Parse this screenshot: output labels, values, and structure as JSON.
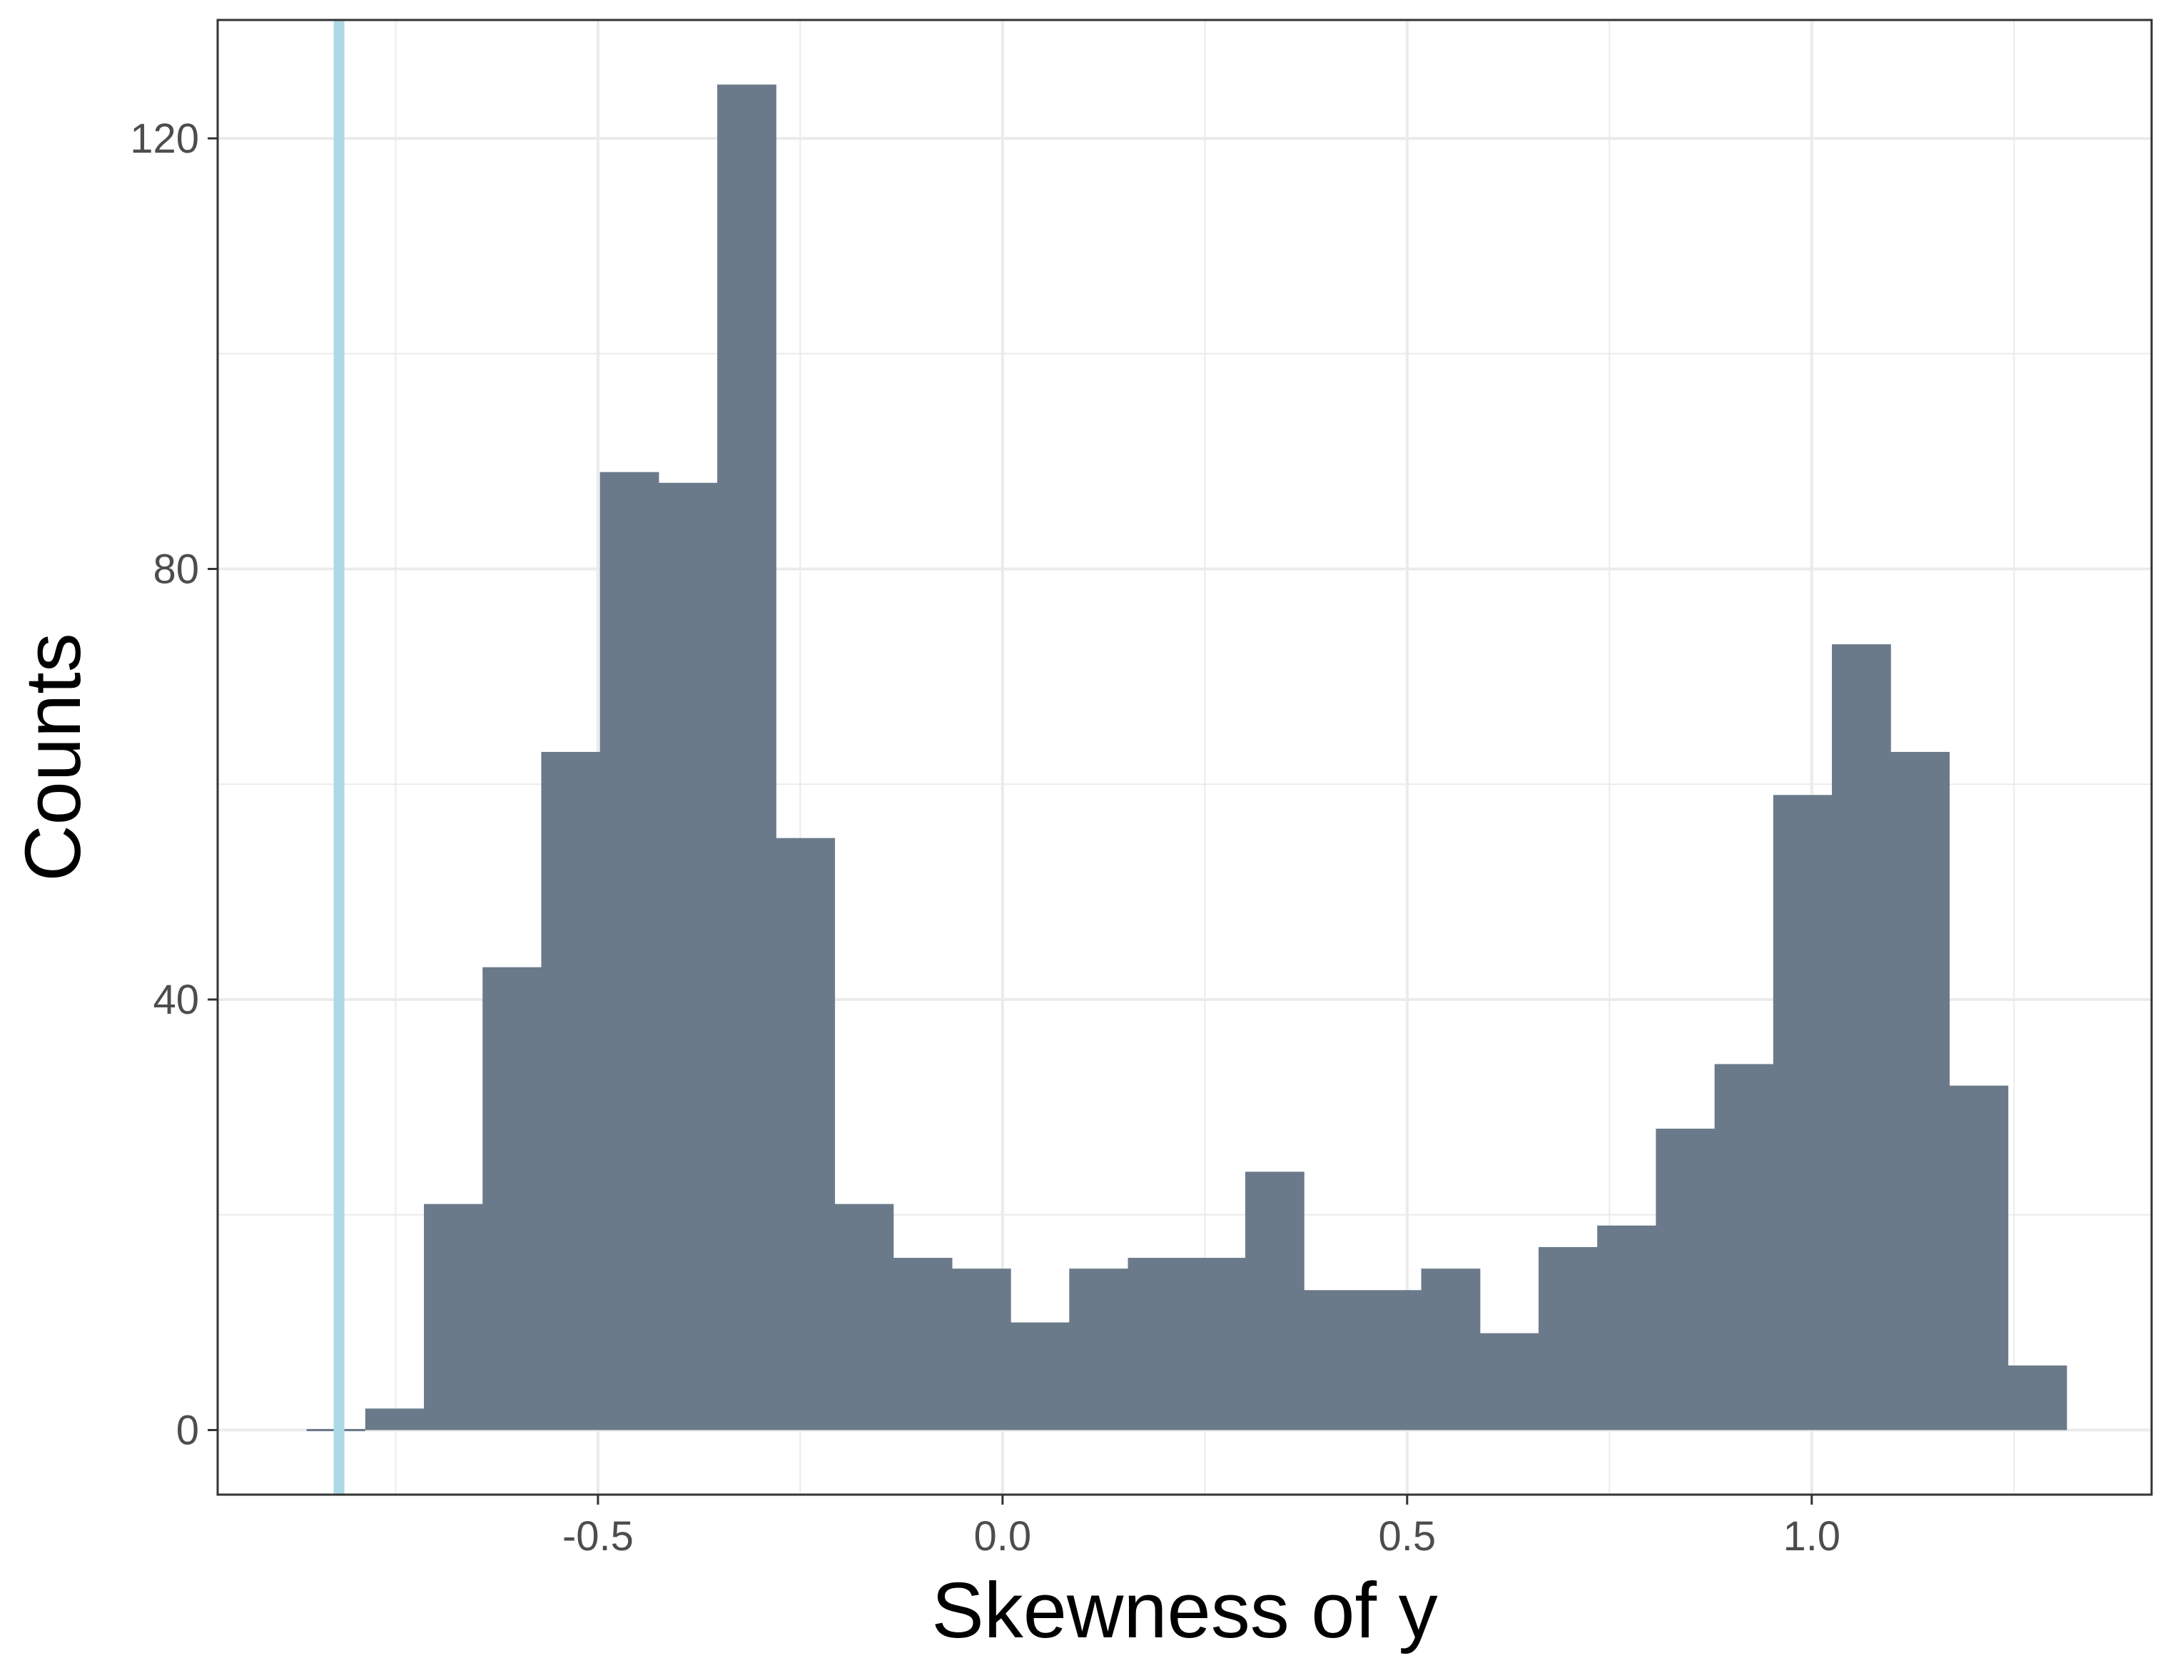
{
  "chart_data": {
    "type": "bar",
    "xlabel": "Skewness of y",
    "ylabel": "Counts",
    "x_ticks": [
      -0.5,
      0.0,
      0.5,
      1.0
    ],
    "x_tick_labels": [
      "-0.5",
      "0.0",
      "0.5",
      "1.0"
    ],
    "y_ticks": [
      0,
      40,
      80,
      120
    ],
    "y_tick_labels": [
      "0",
      "40",
      "80",
      "120"
    ],
    "xlim": [
      -0.97,
      1.42
    ],
    "ylim": [
      -6,
      131
    ],
    "grid": true,
    "bin_width": 0.0725,
    "bins": [
      {
        "x0": -0.8601,
        "x1": -0.7876,
        "count": 0
      },
      {
        "x0": -0.7876,
        "x1": -0.7151,
        "count": 2
      },
      {
        "x0": -0.7151,
        "x1": -0.6426,
        "count": 21
      },
      {
        "x0": -0.6426,
        "x1": -0.5701,
        "count": 43
      },
      {
        "x0": -0.5701,
        "x1": -0.4976,
        "count": 63
      },
      {
        "x0": -0.4976,
        "x1": -0.4251,
        "count": 89
      },
      {
        "x0": -0.4251,
        "x1": -0.3526,
        "count": 88
      },
      {
        "x0": -0.3526,
        "x1": -0.2801,
        "count": 125
      },
      {
        "x0": -0.2801,
        "x1": -0.2076,
        "count": 55
      },
      {
        "x0": -0.2076,
        "x1": -0.1351,
        "count": 21
      },
      {
        "x0": -0.1351,
        "x1": -0.0626,
        "count": 16
      },
      {
        "x0": -0.0626,
        "x1": 0.0099,
        "count": 15
      },
      {
        "x0": 0.0099,
        "x1": 0.0824,
        "count": 10
      },
      {
        "x0": 0.0824,
        "x1": 0.1549,
        "count": 15
      },
      {
        "x0": 0.1549,
        "x1": 0.2274,
        "count": 16
      },
      {
        "x0": 0.2274,
        "x1": 0.2999,
        "count": 16
      },
      {
        "x0": 0.2999,
        "x1": 0.3724,
        "count": 24
      },
      {
        "x0": 0.3724,
        "x1": 0.4449,
        "count": 13
      },
      {
        "x0": 0.4449,
        "x1": 0.5174,
        "count": 13
      },
      {
        "x0": 0.5174,
        "x1": 0.5899,
        "count": 15
      },
      {
        "x0": 0.5899,
        "x1": 0.6624,
        "count": 9
      },
      {
        "x0": 0.6624,
        "x1": 0.7349,
        "count": 17
      },
      {
        "x0": 0.7349,
        "x1": 0.8074,
        "count": 19
      },
      {
        "x0": 0.8074,
        "x1": 0.8799,
        "count": 28
      },
      {
        "x0": 0.8799,
        "x1": 0.9524,
        "count": 34
      },
      {
        "x0": 0.9524,
        "x1": 1.0249,
        "count": 59
      },
      {
        "x0": 1.0249,
        "x1": 1.0974,
        "count": 73
      },
      {
        "x0": 1.0974,
        "x1": 1.1699,
        "count": 63
      },
      {
        "x0": 1.1699,
        "x1": 1.2424,
        "count": 32
      },
      {
        "x0": 1.2424,
        "x1": 1.3149,
        "count": 6
      }
    ],
    "reference_line": {
      "x": -0.82,
      "color": "#add8e6"
    },
    "bar_color": "#6b7a8a",
    "grid_color": "#ebebeb",
    "panel_border_color": "#333333"
  }
}
